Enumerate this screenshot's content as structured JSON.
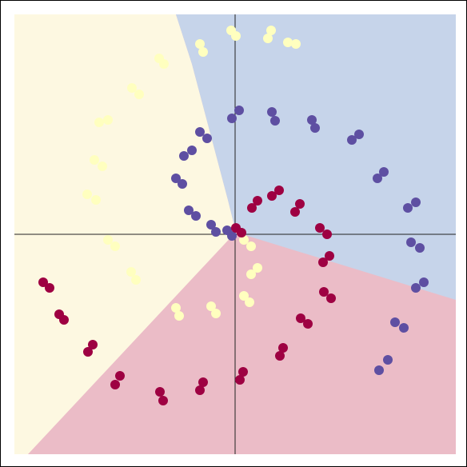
{
  "chart_data": {
    "type": "scatter",
    "xlim": [
      -2.76,
      2.76
    ],
    "ylim": [
      -2.75,
      2.75
    ],
    "grid": false,
    "series": [
      {
        "color": "#5e4fa2",
        "x": [
          -0.04,
          -0.24,
          -0.49,
          -0.66,
          -0.64,
          -0.44,
          -0.04,
          0.46,
          0.96,
          1.46,
          1.86,
          2.16,
          2.31,
          2.26,
          2.11,
          1.91,
          -0.1,
          -0.3,
          -0.58,
          -0.74,
          -0.54,
          -0.35,
          0.05,
          0.5,
          1.0,
          1.55,
          1.78,
          2.26,
          2.2,
          2.36,
          2.0,
          1.8
        ],
        "values": [
          -0.02,
          0.03,
          0.23,
          0.63,
          0.98,
          1.28,
          1.45,
          1.53,
          1.43,
          1.18,
          0.78,
          0.33,
          -0.17,
          -0.67,
          -1.17,
          -1.57,
          0.05,
          0.12,
          0.3,
          0.7,
          1.05,
          1.2,
          1.55,
          1.42,
          1.33,
          1.25,
          0.7,
          0.4,
          -0.1,
          -0.6,
          -1.1,
          -1.7
        ]
      },
      {
        "color": "#ffffbf",
        "x": [
          0.11,
          0.28,
          0.11,
          -0.24,
          -0.74,
          -1.24,
          -1.59,
          -1.74,
          -1.76,
          -1.59,
          -1.29,
          -0.89,
          -0.44,
          0.01,
          0.41,
          0.76,
          0.2,
          0.2,
          0.18,
          -0.3,
          -0.7,
          -1.3,
          -1.5,
          -1.85,
          -1.66,
          -1.7,
          -1.2,
          -0.95,
          -0.4,
          -0.05,
          0.45,
          0.66
        ],
        "values": [
          -0.07,
          -0.42,
          -0.77,
          -0.99,
          -0.92,
          -0.57,
          -0.07,
          0.43,
          0.93,
          1.43,
          1.83,
          2.13,
          2.38,
          2.48,
          2.45,
          2.38,
          -0.15,
          -0.5,
          -0.85,
          -0.9,
          -1.02,
          -0.47,
          -0.15,
          0.5,
          0.85,
          1.4,
          1.75,
          2.2,
          2.28,
          2.55,
          2.55,
          2.4
        ]
      },
      {
        "color": "#9e0142",
        "x": [
          0.01,
          0.21,
          0.46,
          0.81,
          1.06,
          1.18,
          1.11,
          0.91,
          0.56,
          0.06,
          -0.44,
          -0.94,
          -1.44,
          -1.84,
          -2.14,
          -2.32,
          0.08,
          0.28,
          0.55,
          0.75,
          1.15,
          1.1,
          1.2,
          0.82,
          0.6,
          0.1,
          -0.4,
          -0.9,
          -1.5,
          -1.78,
          -2.2,
          -2.4
        ],
        "values": [
          0.08,
          0.33,
          0.48,
          0.38,
          0.08,
          -0.27,
          -0.72,
          -1.12,
          -1.52,
          -1.82,
          -1.95,
          -1.97,
          -1.77,
          -1.47,
          -1.07,
          -0.67,
          0.02,
          0.42,
          0.55,
          0.28,
          0.0,
          -0.35,
          -0.8,
          -1.05,
          -1.42,
          -1.72,
          -1.85,
          -2.08,
          -1.88,
          -1.38,
          -1.0,
          -0.6
        ]
      }
    ]
  }
}
